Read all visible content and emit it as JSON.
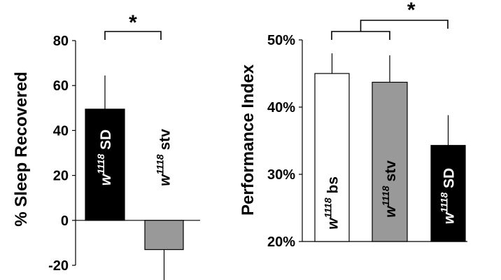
{
  "chart_data": [
    {
      "type": "bar",
      "ylabel": "% Sleep Recovered",
      "ylim": [
        -20,
        80
      ],
      "yticks": [
        -20,
        0,
        20,
        40,
        60,
        80
      ],
      "ytick_labels": [
        "-20",
        "0",
        "20",
        "40",
        "60",
        "80"
      ],
      "bars": [
        {
          "base": "w",
          "sup": "1118",
          "suffix": " SD",
          "value": 49.5,
          "error": 15,
          "color": "#000000",
          "label_color": "#ffffff"
        },
        {
          "base": "w",
          "sup": "1118",
          "suffix": " stv",
          "value": -13,
          "error": 18,
          "color": "#999999",
          "label_color": "#000000"
        }
      ],
      "significance": "*"
    },
    {
      "type": "bar",
      "ylabel": "Performance Index",
      "ylim": [
        20,
        50
      ],
      "yticks": [
        20,
        30,
        40,
        50
      ],
      "ytick_labels": [
        "20%",
        "30%",
        "40%",
        "50%"
      ],
      "bars": [
        {
          "base": "w",
          "sup": "1118",
          "suffix": " bs",
          "value": 45,
          "error": 3,
          "color": "#ffffff",
          "label_color": "#000000"
        },
        {
          "base": "w",
          "sup": "1118",
          "suffix": " stv",
          "value": 43.7,
          "error": 4,
          "color": "#999999",
          "label_color": "#000000"
        },
        {
          "base": "w",
          "sup": "1118",
          "suffix": " SD",
          "value": 34.3,
          "error": 4.5,
          "color": "#000000",
          "label_color": "#ffffff"
        }
      ],
      "significance": "*"
    }
  ]
}
